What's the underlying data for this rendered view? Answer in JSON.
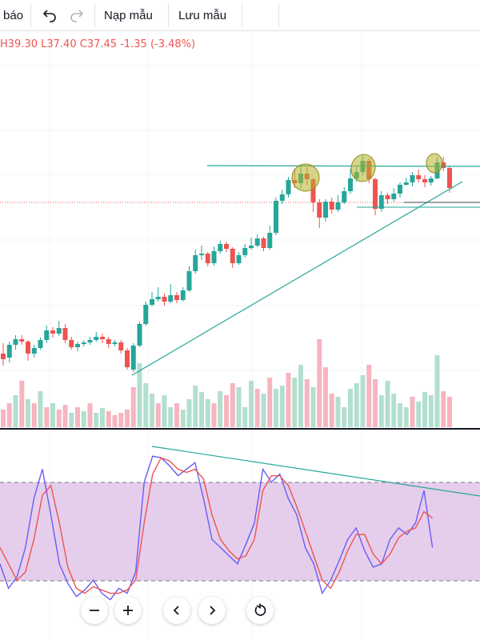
{
  "toolbar": {
    "alerts_label": "báo",
    "undo_icon": "undo-icon",
    "redo_icon": "redo-icon",
    "load_template_label": "Nạp mẫu",
    "save_template_label": "Lưu mẫu"
  },
  "legend": {
    "high": "H39.30",
    "low": "L37.40",
    "close": "C37.45",
    "change": "-1.35 (-3.48%)"
  },
  "colors": {
    "up": "#26a69a",
    "down": "#ef5350",
    "up_volume": "#b2dfcf",
    "down_volume": "#f6b5bf",
    "stoch_k": "#6a5cf5",
    "stoch_d": "#ef5350",
    "stoch_band": "#e1c6e8",
    "trendline": "#26a69a",
    "circle_fill": "#b5b228"
  },
  "navigation": {
    "zoom_out_icon": "minus-icon",
    "zoom_in_icon": "plus-icon",
    "scroll_left_icon": "chevron-left-icon",
    "scroll_right_icon": "chevron-right-icon",
    "reset_icon": "reset-icon"
  },
  "chart_data": {
    "type": "candlestick",
    "last_close": 37.45,
    "candles": [
      [
        -0.5,
        -1.2,
        0.8,
        -2
      ],
      [
        -1.0,
        0.6,
        1.0,
        -1.6
      ],
      [
        0.6,
        1.3,
        1.8,
        0
      ],
      [
        1.3,
        1.0,
        1.8,
        0.6
      ],
      [
        1.0,
        -0.5,
        1.2,
        -1.4
      ],
      [
        -0.5,
        0.2,
        0.6,
        -1.0
      ],
      [
        0.2,
        1.2,
        1.5,
        0
      ],
      [
        1.2,
        2.4,
        3.0,
        0.8
      ],
      [
        2.4,
        2.0,
        2.8,
        1.5
      ],
      [
        2.0,
        2.7,
        3.6,
        1.7
      ],
      [
        2.7,
        1.2,
        3.2,
        0.8
      ],
      [
        1.2,
        0.3,
        1.6,
        0
      ],
      [
        0.3,
        0.7,
        1.0,
        -0.2
      ],
      [
        0.7,
        0.9,
        1.2,
        0.4
      ],
      [
        0.9,
        1.2,
        1.6,
        0.6
      ],
      [
        1.2,
        1.6,
        2.2,
        1.0
      ],
      [
        1.6,
        1.3,
        2.0,
        0.8
      ],
      [
        1.3,
        0.7,
        1.6,
        0.2
      ],
      [
        0.7,
        0.9,
        1.2,
        0.4
      ],
      [
        0.9,
        -0.1,
        1.2,
        -0.5
      ],
      [
        -0.1,
        -2.2,
        0.2,
        -2.5
      ],
      [
        -2.5,
        0.5,
        0.8,
        -2.8
      ],
      [
        0.5,
        3.2,
        3.5,
        0.3
      ],
      [
        3.2,
        5.6,
        6.0,
        3.0
      ],
      [
        5.6,
        6.3,
        7.2,
        5.4
      ],
      [
        6.3,
        6.6,
        7.8,
        6.0
      ],
      [
        6.6,
        6.0,
        7.0,
        5.5
      ],
      [
        6.0,
        6.8,
        8.2,
        5.8
      ],
      [
        6.8,
        6.2,
        7.2,
        5.8
      ],
      [
        6.2,
        7.4,
        7.8,
        6.0
      ],
      [
        7.4,
        9.8,
        10.4,
        7.2
      ],
      [
        9.8,
        11.8,
        12.5,
        9.5
      ],
      [
        11.8,
        12.0,
        13.0,
        11.2
      ],
      [
        12.0,
        10.8,
        12.2,
        10.4
      ],
      [
        10.8,
        12.3,
        12.9,
        10.5
      ],
      [
        12.3,
        13.2,
        13.6,
        12.0
      ],
      [
        13.2,
        12.6,
        13.5,
        12.2
      ],
      [
        12.6,
        10.8,
        12.8,
        10.2
      ],
      [
        10.8,
        11.8,
        12.2,
        10.6
      ],
      [
        11.8,
        12.7,
        13.2,
        11.5
      ],
      [
        12.7,
        13.0,
        14.0,
        12.5
      ],
      [
        13.0,
        13.9,
        14.4,
        12.8
      ],
      [
        13.9,
        12.7,
        14.1,
        12.3
      ],
      [
        12.7,
        14.6,
        15.5,
        12.5
      ],
      [
        14.6,
        18.6,
        19.0,
        14.3
      ],
      [
        18.6,
        19.4,
        20.0,
        18.2
      ],
      [
        19.4,
        21.2,
        21.6,
        19.0
      ],
      [
        21.2,
        20.8,
        22.6,
        20.2
      ],
      [
        20.8,
        22.0,
        23.0,
        20.2
      ],
      [
        22.0,
        21.3,
        22.8,
        20.6
      ],
      [
        21.3,
        18.4,
        21.5,
        17.2
      ],
      [
        18.4,
        16.5,
        18.8,
        15.2
      ],
      [
        16.5,
        18.5,
        18.8,
        16.0
      ],
      [
        18.5,
        17.5,
        19.0,
        17.0
      ],
      [
        17.5,
        18.4,
        19.3,
        17.2
      ],
      [
        18.4,
        19.8,
        20.3,
        18.2
      ],
      [
        19.8,
        21.4,
        22.6,
        19.5
      ],
      [
        21.4,
        22.2,
        22.8,
        21.0
      ],
      [
        22.2,
        23.6,
        24.2,
        21.8
      ],
      [
        23.6,
        21.3,
        23.9,
        20.8
      ],
      [
        21.3,
        17.6,
        21.5,
        16.8
      ],
      [
        17.6,
        19.3,
        19.8,
        17.2
      ],
      [
        19.3,
        18.8,
        19.6,
        18.2
      ],
      [
        18.8,
        19.5,
        20.2,
        18.5
      ],
      [
        19.5,
        20.6,
        20.9,
        19.0
      ],
      [
        20.6,
        20.9,
        21.5,
        20.5
      ],
      [
        20.9,
        21.8,
        22.2,
        20.4
      ],
      [
        21.8,
        21.3,
        22.5,
        20.9
      ],
      [
        21.3,
        20.9,
        21.8,
        20.3
      ],
      [
        20.9,
        21.4,
        21.7,
        20.5
      ],
      [
        21.4,
        23.4,
        24.0,
        21.3
      ],
      [
        23.4,
        22.7,
        24.1,
        22.3
      ],
      [
        22.7,
        20.2,
        22.9,
        19.6
      ]
    ],
    "volume": [
      [
        22,
        "d"
      ],
      [
        30,
        "d"
      ],
      [
        40,
        "u"
      ],
      [
        58,
        "d"
      ],
      [
        35,
        "u"
      ],
      [
        30,
        "d"
      ],
      [
        45,
        "u"
      ],
      [
        25,
        "d"
      ],
      [
        30,
        "u"
      ],
      [
        22,
        "d"
      ],
      [
        28,
        "d"
      ],
      [
        18,
        "u"
      ],
      [
        25,
        "d"
      ],
      [
        20,
        "u"
      ],
      [
        30,
        "d"
      ],
      [
        18,
        "u"
      ],
      [
        24,
        "u"
      ],
      [
        20,
        "d"
      ],
      [
        15,
        "d"
      ],
      [
        18,
        "d"
      ],
      [
        22,
        "d"
      ],
      [
        50,
        "d"
      ],
      [
        80,
        "u"
      ],
      [
        55,
        "u"
      ],
      [
        42,
        "u"
      ],
      [
        30,
        "d"
      ],
      [
        40,
        "u"
      ],
      [
        25,
        "u"
      ],
      [
        30,
        "d"
      ],
      [
        22,
        "u"
      ],
      [
        35,
        "u"
      ],
      [
        52,
        "u"
      ],
      [
        44,
        "u"
      ],
      [
        35,
        "u"
      ],
      [
        30,
        "d"
      ],
      [
        45,
        "u"
      ],
      [
        40,
        "d"
      ],
      [
        55,
        "d"
      ],
      [
        50,
        "u"
      ],
      [
        25,
        "u"
      ],
      [
        58,
        "u"
      ],
      [
        48,
        "d"
      ],
      [
        42,
        "u"
      ],
      [
        62,
        "d"
      ],
      [
        48,
        "u"
      ],
      [
        52,
        "u"
      ],
      [
        68,
        "d"
      ],
      [
        62,
        "u"
      ],
      [
        78,
        "u"
      ],
      [
        60,
        "d"
      ],
      [
        50,
        "u"
      ],
      [
        110,
        "d"
      ],
      [
        75,
        "d"
      ],
      [
        42,
        "d"
      ],
      [
        38,
        "u"
      ],
      [
        25,
        "u"
      ],
      [
        48,
        "u"
      ],
      [
        55,
        "u"
      ],
      [
        65,
        "u"
      ],
      [
        78,
        "d"
      ],
      [
        60,
        "d"
      ],
      [
        40,
        "u"
      ],
      [
        58,
        "u"
      ],
      [
        42,
        "u"
      ],
      [
        30,
        "u"
      ],
      [
        25,
        "u"
      ],
      [
        38,
        "d"
      ],
      [
        32,
        "u"
      ],
      [
        44,
        "u"
      ],
      [
        40,
        "u"
      ],
      [
        90,
        "u"
      ],
      [
        45,
        "d"
      ],
      [
        38,
        "d"
      ]
    ],
    "stoch_k": [
      30,
      15,
      22,
      40,
      70,
      88,
      60,
      30,
      18,
      10,
      14,
      20,
      12,
      8,
      15,
      12,
      25,
      80,
      96,
      95,
      90,
      84,
      88,
      92,
      70,
      45,
      40,
      35,
      30,
      42,
      55,
      88,
      80,
      85,
      70,
      60,
      40,
      30,
      12,
      20,
      32,
      45,
      52,
      38,
      28,
      30,
      45,
      52,
      48,
      55,
      75,
      40
    ],
    "stoch_d": [
      40,
      30,
      20,
      25,
      45,
      72,
      78,
      55,
      28,
      15,
      12,
      16,
      14,
      12,
      12,
      14,
      20,
      55,
      85,
      95,
      93,
      88,
      86,
      88,
      82,
      60,
      45,
      38,
      33,
      35,
      45,
      75,
      84,
      84,
      78,
      65,
      50,
      35,
      20,
      15,
      25,
      38,
      48,
      48,
      36,
      30,
      36,
      46,
      50,
      52,
      62,
      58
    ]
  }
}
